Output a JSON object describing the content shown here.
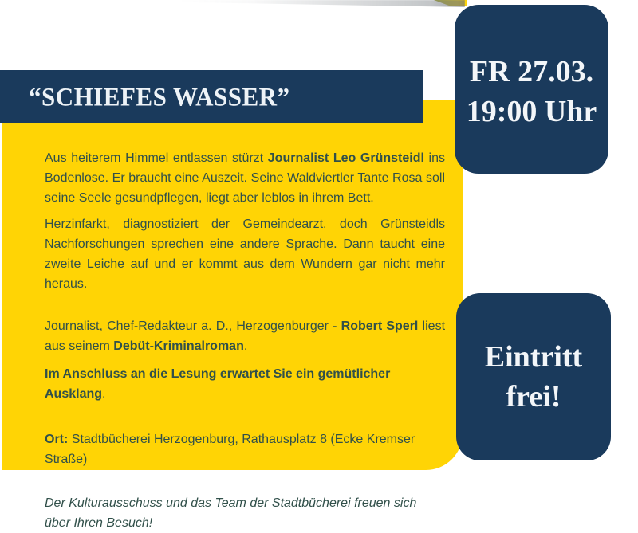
{
  "flyer": {
    "title": "“SCHIEFES WASSER”",
    "date_badge": {
      "line1": "FR 27.03.",
      "line2": "19:00 Uhr"
    },
    "admission_badge": {
      "line1": "Eintritt",
      "line2": "frei!"
    },
    "body": {
      "p1_pre": "Aus heiterem Himmel entlassen stürzt ",
      "p1_bold": "Journalist Leo Grünsteidl",
      "p1_post": " ins Bodenlose. Er braucht eine Auszeit. Seine Waldviertler Tante Rosa soll seine Seele gesundpflegen, liegt aber leblos in ihrem Bett.",
      "p2": "Herzinfarkt, diagnostiziert der Gemeindearzt, doch Grünsteidls Nachforschungen sprechen eine andere Sprache. Dann taucht eine zweite Leiche auf und er kommt aus dem Wundern gar nicht mehr heraus.",
      "p3_pre": "Journalist, Chef-Redakteur a. D., Herzogenburger - ",
      "p3_bold1": "Robert Sperl",
      "p3_mid": " liest aus seinem ",
      "p3_bold2": "Debüt-Kriminalroman",
      "p3_post": ".",
      "p4_bold": "Im Anschluss an die Lesung erwartet Sie ein gemütlicher Ausklang",
      "p4_post": ".",
      "p5_bold": "Ort:",
      "p5_post": " Stadtbücherei Herzogenburg, Rathausplatz 8 (Ecke Kremser Straße)",
      "p6_italic": "Der Kulturausschuss und das Team der Stadtbücherei freuen sich über Ihren Besuch!"
    },
    "colors": {
      "navy": "#1a3a5c",
      "yellow": "#ffd405",
      "body_text": "#31504a",
      "banner_text": "#eef3f7"
    }
  }
}
